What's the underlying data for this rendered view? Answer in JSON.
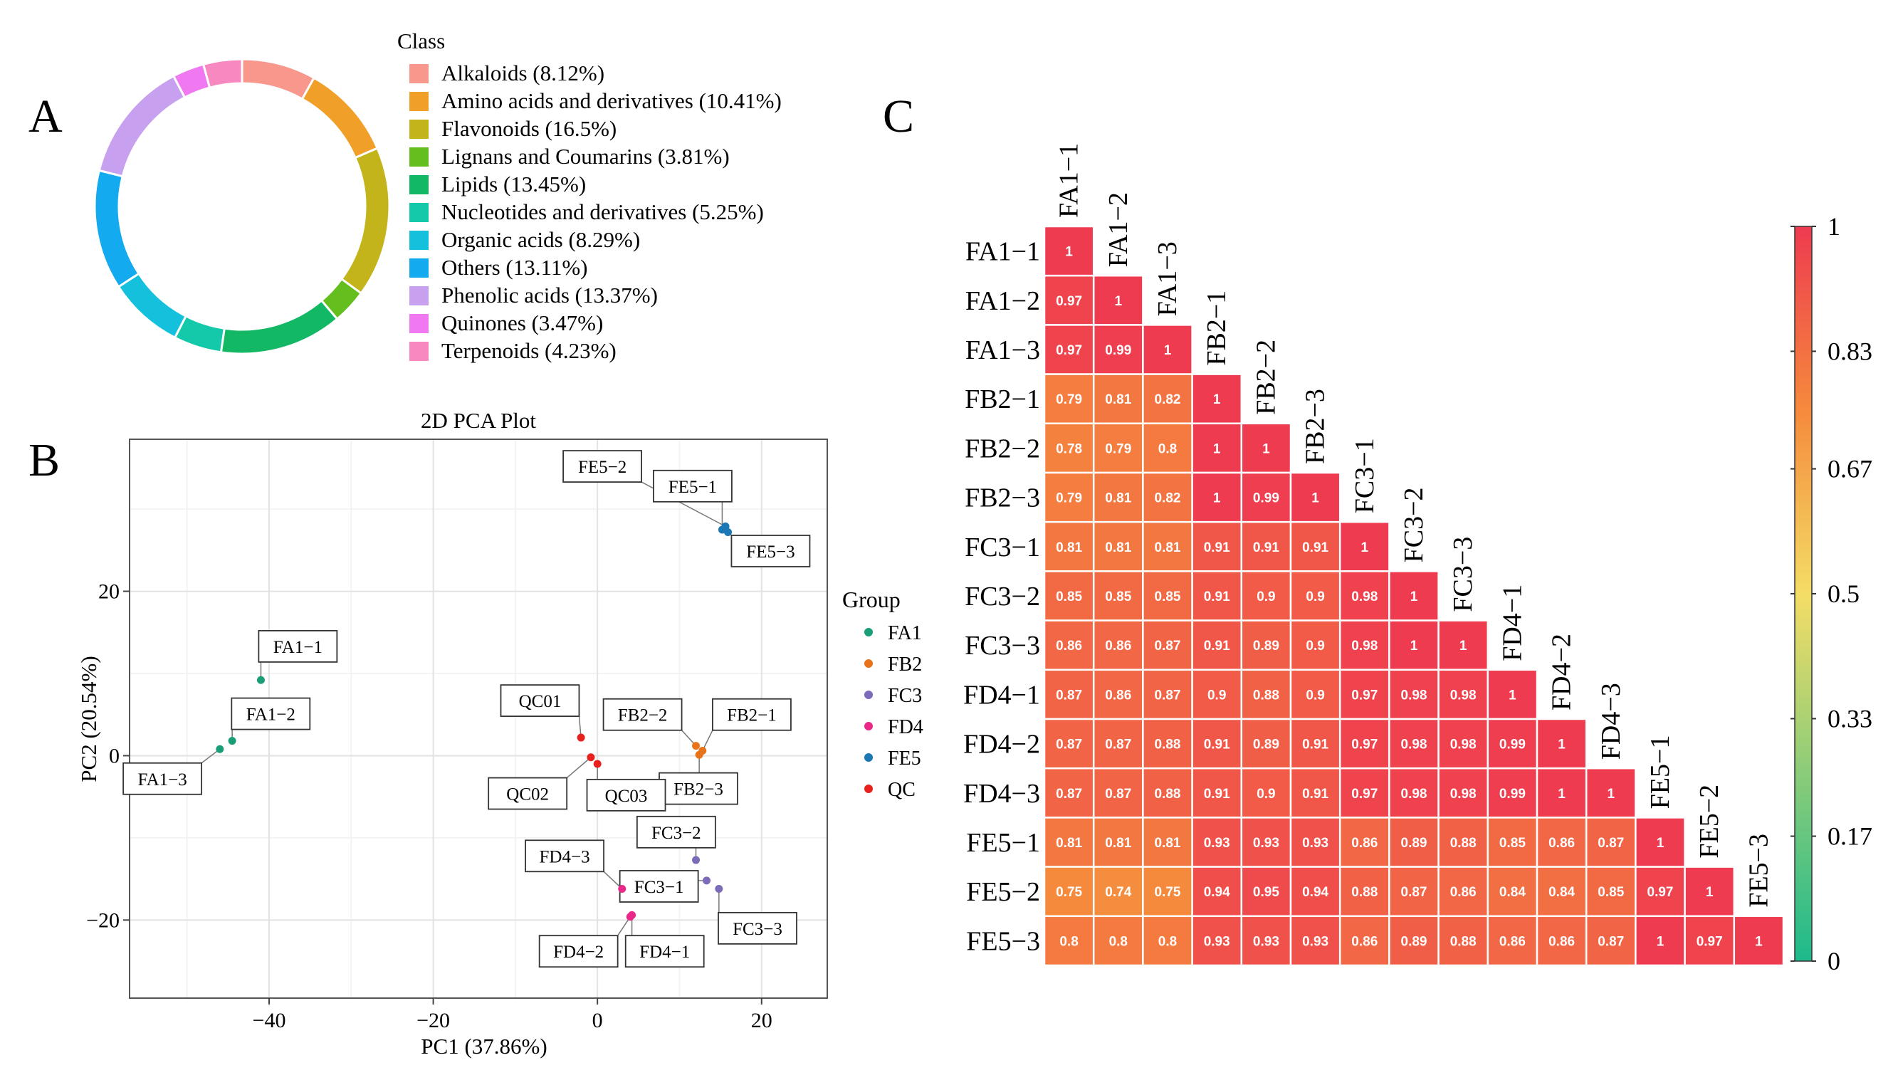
{
  "panel_labels": {
    "a": "A",
    "b": "B",
    "c": "C"
  },
  "chart_data": [
    {
      "type": "pie",
      "variant": "donut",
      "legend_title": "Class",
      "legend_position": "right",
      "slices": [
        {
          "label": "Alkaloids (8.12%)",
          "value": 8.12,
          "color": "#F8978C"
        },
        {
          "label": "Amino acids and derivatives (10.41%)",
          "value": 10.41,
          "color": "#F0A028"
        },
        {
          "label": "Flavonoids (16.5%)",
          "value": 16.5,
          "color": "#C4B41C"
        },
        {
          "label": "Lignans and Coumarins (3.81%)",
          "value": 3.81,
          "color": "#64BE1E"
        },
        {
          "label": "Lipids (13.45%)",
          "value": 13.45,
          "color": "#12B864"
        },
        {
          "label": "Nucleotides and derivatives (5.25%)",
          "value": 5.25,
          "color": "#14C8AA"
        },
        {
          "label": "Organic acids (8.29%)",
          "value": 8.29,
          "color": "#14C0DC"
        },
        {
          "label": "Others (13.11%)",
          "value": 13.11,
          "color": "#14AAF0"
        },
        {
          "label": "Phenolic acids (13.37%)",
          "value": 13.37,
          "color": "#C8A0F0"
        },
        {
          "label": "Quinones (3.47%)",
          "value": 3.47,
          "color": "#F078F0"
        },
        {
          "label": "Terpenoids (4.23%)",
          "value": 4.23,
          "color": "#F888C0"
        }
      ]
    },
    {
      "type": "scatter",
      "title": "2D PCA Plot",
      "xlabel": "PC1 (37.86%)",
      "ylabel": "PC2 (20.54%)",
      "xlim": [
        -57,
        28
      ],
      "ylim": [
        -29.5,
        38.5
      ],
      "xticks": [
        -40,
        -20,
        0,
        20
      ],
      "yticks": [
        -20,
        0,
        20
      ],
      "xtick_labels": [
        "−40",
        "−20",
        "0",
        "20"
      ],
      "ytick_labels": [
        "−20",
        "0",
        "20"
      ],
      "grid": true,
      "legend_title": "Group",
      "legend_position": "right",
      "groups": [
        {
          "name": "FA1",
          "color": "#1A9E77"
        },
        {
          "name": "FB2",
          "color": "#E8731A"
        },
        {
          "name": "FC3",
          "color": "#7B6BB8"
        },
        {
          "name": "FD4",
          "color": "#E9288A"
        },
        {
          "name": "FE5",
          "color": "#1C78B5"
        },
        {
          "name": "QC",
          "color": "#E8201E"
        }
      ],
      "points": [
        {
          "label": "FA1−1",
          "group": "FA1",
          "x": -41,
          "y": 9.2,
          "box": [
            -36.5,
            13.3
          ]
        },
        {
          "label": "FA1−2",
          "group": "FA1",
          "x": -44.5,
          "y": 1.8,
          "box": [
            -39.8,
            5.1
          ]
        },
        {
          "label": "FA1−3",
          "group": "FA1",
          "x": -46,
          "y": 0.8,
          "box": [
            -53,
            -2.8
          ]
        },
        {
          "label": "FB2−1",
          "group": "FB2",
          "x": 12.8,
          "y": 0.6,
          "box": [
            18.8,
            5.0
          ]
        },
        {
          "label": "FB2−2",
          "group": "FB2",
          "x": 12.0,
          "y": 1.2,
          "box": [
            5.5,
            5.0
          ]
        },
        {
          "label": "FB2−3",
          "group": "FB2",
          "x": 12.4,
          "y": 0.1,
          "box": [
            12.3,
            -4.0
          ]
        },
        {
          "label": "FC3−1",
          "group": "FC3",
          "x": 13.3,
          "y": -15.2,
          "box": [
            7.5,
            -15.9
          ]
        },
        {
          "label": "FC3−2",
          "group": "FC3",
          "x": 12.0,
          "y": -12.7,
          "box": [
            9.6,
            -9.3
          ]
        },
        {
          "label": "FC3−3",
          "group": "FC3",
          "x": 14.8,
          "y": -16.2,
          "box": [
            19.5,
            -21.0
          ]
        },
        {
          "label": "FD4−1",
          "group": "FD4",
          "x": 4.2,
          "y": -19.4,
          "box": [
            8.2,
            -23.8
          ]
        },
        {
          "label": "FD4−2",
          "group": "FD4",
          "x": 4.0,
          "y": -19.6,
          "box": [
            -2.3,
            -23.8
          ]
        },
        {
          "label": "FD4−3",
          "group": "FD4",
          "x": 3.0,
          "y": -16.2,
          "box": [
            -4.0,
            -12.2
          ]
        },
        {
          "label": "FE5−1",
          "group": "FE5",
          "x": 15.2,
          "y": 27.5,
          "box": [
            11.6,
            32.8
          ]
        },
        {
          "label": "FE5−2",
          "group": "FE5",
          "x": 15.6,
          "y": 27.9,
          "box": [
            0.6,
            35.2
          ]
        },
        {
          "label": "FE5−3",
          "group": "FE5",
          "x": 15.9,
          "y": 27.2,
          "box": [
            21.1,
            24.9
          ]
        },
        {
          "label": "QC01",
          "group": "QC",
          "x": -2.0,
          "y": 2.2,
          "box": [
            -7.0,
            6.7
          ]
        },
        {
          "label": "QC02",
          "group": "QC",
          "x": -0.8,
          "y": -0.2,
          "box": [
            -8.5,
            -4.6
          ]
        },
        {
          "label": "QC03",
          "group": "QC",
          "x": 0.0,
          "y": -1.0,
          "box": [
            3.5,
            -4.8
          ]
        }
      ]
    },
    {
      "type": "heatmap",
      "variant": "lower-triangular correlation",
      "labels": [
        "FA1−1",
        "FA1−2",
        "FA1−3",
        "FB2−1",
        "FB2−2",
        "FB2−3",
        "FC3−1",
        "FC3−2",
        "FC3−3",
        "FD4−1",
        "FD4−2",
        "FD4−3",
        "FE5−1",
        "FE5−2",
        "FE5−3"
      ],
      "values": [
        [
          1
        ],
        [
          0.97,
          1
        ],
        [
          0.97,
          0.99,
          1
        ],
        [
          0.79,
          0.81,
          0.82,
          1
        ],
        [
          0.78,
          0.79,
          0.8,
          1,
          1
        ],
        [
          0.79,
          0.81,
          0.82,
          1,
          0.99,
          1
        ],
        [
          0.81,
          0.81,
          0.81,
          0.91,
          0.91,
          0.91,
          1
        ],
        [
          0.85,
          0.85,
          0.85,
          0.91,
          0.9,
          0.9,
          0.98,
          1
        ],
        [
          0.86,
          0.86,
          0.87,
          0.91,
          0.89,
          0.9,
          0.98,
          1,
          1
        ],
        [
          0.87,
          0.86,
          0.87,
          0.9,
          0.88,
          0.9,
          0.97,
          0.98,
          0.98,
          1
        ],
        [
          0.87,
          0.87,
          0.88,
          0.91,
          0.89,
          0.91,
          0.97,
          0.98,
          0.98,
          0.99,
          1
        ],
        [
          0.87,
          0.87,
          0.88,
          0.91,
          0.9,
          0.91,
          0.97,
          0.98,
          0.98,
          0.99,
          1,
          1
        ],
        [
          0.81,
          0.81,
          0.81,
          0.93,
          0.93,
          0.93,
          0.86,
          0.89,
          0.88,
          0.85,
          0.86,
          0.87,
          1
        ],
        [
          0.75,
          0.74,
          0.75,
          0.94,
          0.95,
          0.94,
          0.88,
          0.87,
          0.86,
          0.84,
          0.84,
          0.85,
          0.97,
          1
        ],
        [
          0.8,
          0.8,
          0.8,
          0.93,
          0.93,
          0.93,
          0.86,
          0.89,
          0.88,
          0.86,
          0.86,
          0.87,
          1,
          0.97,
          1
        ]
      ],
      "colorbar": {
        "range": [
          0,
          1
        ],
        "ticks": [
          0,
          0.17,
          0.33,
          0.5,
          0.67,
          0.83,
          1
        ],
        "tick_labels": [
          "0",
          "0.17",
          "0.33",
          "0.5",
          "0.67",
          "0.83",
          "1"
        ],
        "stops": [
          "#1DBA8C",
          "#F4DD66",
          "#F58A3C",
          "#EE3B50"
        ]
      }
    }
  ]
}
